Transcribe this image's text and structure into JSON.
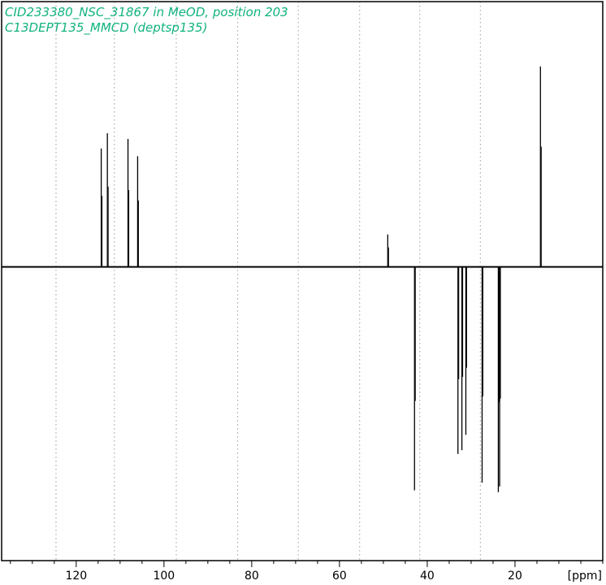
{
  "chart_data": {
    "type": "line",
    "title_lines": [
      "CID233380_NSC_31867 in MeOD, position 203",
      "C13DEPT135_MMCD (deptsp135)"
    ],
    "xlabel": "[ppm]",
    "x_axis_reversed": true,
    "xlim": [
      137,
      0
    ],
    "ylim": [
      -1.5,
      1.0
    ],
    "tick_labels": [
      "120",
      "100",
      "80",
      "60",
      "40",
      "20"
    ],
    "major_ticks": [
      120,
      100,
      80,
      60,
      40,
      20
    ],
    "minor_tick_step": 5,
    "gridlines_x": [
      124.6,
      111.3,
      97.2,
      83.2,
      69.4,
      55.4,
      41.7,
      27.9
    ],
    "grid": "dotted vertical",
    "baseline": 0,
    "peaks": [
      {
        "x": 114.3,
        "y": 0.62
      },
      {
        "x": 112.9,
        "y": 0.7
      },
      {
        "x": 108.2,
        "y": 0.67
      },
      {
        "x": 106.0,
        "y": 0.58
      },
      {
        "x": 49.0,
        "y": 0.17
      },
      {
        "x": 42.9,
        "y": -1.17
      },
      {
        "x": 33.0,
        "y": -0.98
      },
      {
        "x": 32.1,
        "y": -0.96
      },
      {
        "x": 31.2,
        "y": -0.88
      },
      {
        "x": 27.5,
        "y": -1.13
      },
      {
        "x": 23.8,
        "y": -1.18
      },
      {
        "x": 23.5,
        "y": -1.15
      },
      {
        "x": 14.2,
        "y": 1.05
      }
    ],
    "colors": {
      "title": "#10b37f",
      "trace": "#000000",
      "grid": "#9a9a9a",
      "frame": "#000000"
    }
  }
}
